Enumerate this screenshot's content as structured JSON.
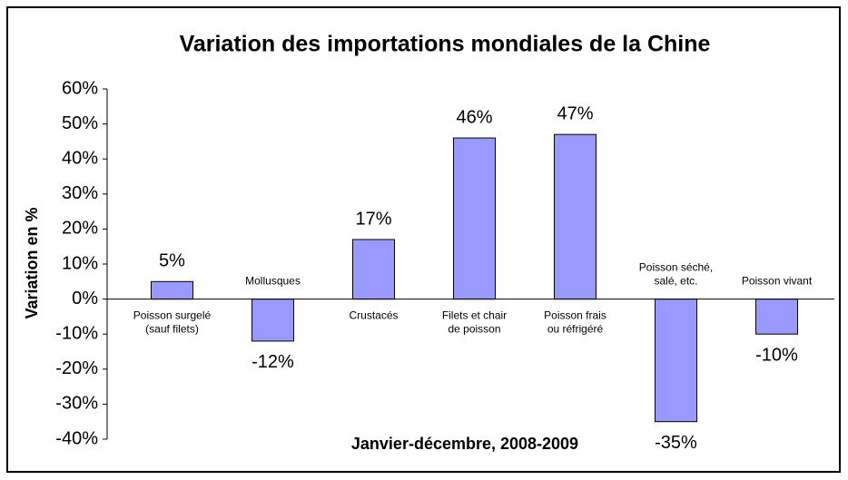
{
  "chart_data": {
    "type": "bar",
    "title": "Variation des importations mondiales de la Chine",
    "y_label": "Variation en %",
    "x_label": "Janvier-décembre, 2008-2009",
    "categories": [
      "Poisson surgelé\n(sauf filets)",
      "Mollusques",
      "Crustacés",
      "Filets et chair\nde poisson",
      "Poisson frais\nou réfrigéré",
      "Poisson séché,\nsalé, etc.",
      "Poisson vivant"
    ],
    "values": [
      5,
      -12,
      17,
      46,
      47,
      -35,
      -10
    ],
    "value_labels": [
      "5%",
      "-12%",
      "17%",
      "46%",
      "47%",
      "-35%",
      "-10%"
    ],
    "color": "#9999ff",
    "ylim": [
      -40,
      60
    ],
    "yticks": [
      {
        "value": -40,
        "label": "-40%"
      },
      {
        "value": -30,
        "label": "-30%"
      },
      {
        "value": -20,
        "label": "-20%"
      },
      {
        "value": -10,
        "label": "-10%"
      },
      {
        "value": 0,
        "label": "0%"
      },
      {
        "value": 10,
        "label": "10%"
      },
      {
        "value": 20,
        "label": "20%"
      },
      {
        "value": 30,
        "label": "30%"
      },
      {
        "value": 40,
        "label": "40%"
      },
      {
        "value": 50,
        "label": "50%"
      },
      {
        "value": 60,
        "label": "60%"
      }
    ],
    "grid": false
  }
}
